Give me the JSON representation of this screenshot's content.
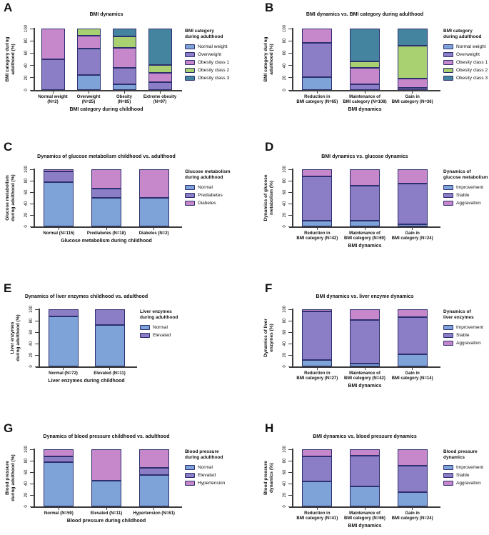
{
  "colors": {
    "background": "#ffffff",
    "bar_border": "#2d2f6e",
    "axis": "#3c3c3c",
    "text": "#141414",
    "blue": "#7da3d8",
    "purple": "#8b7ec6",
    "orchid": "#c687cb",
    "green": "#a9d171",
    "teal": "#45849e"
  },
  "chart_data": [
    {
      "panel": "A",
      "type": "bar",
      "stacked": true,
      "grid": false,
      "legend_position": "right",
      "title": "BMI dynamics",
      "xlabel": "BMI category during childhood",
      "ylabel": "BMI category during adulthood (%)",
      "ylabel_lines": [
        "BMI category during",
        "adulthood (%)"
      ],
      "ylim": [
        0,
        100
      ],
      "yticks": [
        0,
        20,
        40,
        60,
        80,
        100
      ],
      "legend_title_lines": [
        "BMI category",
        "during adulthood"
      ],
      "categories": [
        [
          "Normal weight",
          "(N=2)"
        ],
        [
          "Overweight",
          "(N=25)"
        ],
        [
          "Obesity",
          "(N=85)"
        ],
        [
          "Extreme obesity",
          "(N=97)"
        ]
      ],
      "series": [
        {
          "name": "Normal weight",
          "color": "#7da3d8",
          "values": [
            0,
            24,
            9,
            0
          ]
        },
        {
          "name": "Overweight",
          "color": "#8b7ec6",
          "values": [
            50,
            44,
            27,
            13
          ]
        },
        {
          "name": "Obesity class 1",
          "color": "#c687cb",
          "values": [
            50,
            20,
            33,
            15
          ]
        },
        {
          "name": "Obesity class 2",
          "color": "#a9d171",
          "values": [
            0,
            12,
            18,
            13
          ]
        },
        {
          "name": "Obesity class 3",
          "color": "#45849e",
          "values": [
            0,
            0,
            13,
            59
          ]
        }
      ]
    },
    {
      "panel": "B",
      "type": "bar",
      "stacked": true,
      "grid": false,
      "legend_position": "right",
      "title": "BMI dynamics vs. BMI category during adulthood",
      "xlabel": "BMI dynamics",
      "ylabel": "BMI category during adulthood (%)",
      "ylabel_lines": [
        "BMI category during",
        "adulthood (%)"
      ],
      "ylim": [
        0,
        100
      ],
      "yticks": [
        0,
        20,
        40,
        60,
        80,
        100
      ],
      "legend_title_lines": [
        "BMI category",
        "during adulthood"
      ],
      "categories": [
        [
          "Reduction in",
          "BMI category (N=65)"
        ],
        [
          "Maintenance of",
          "BMI category (N=108)"
        ],
        [
          "Gain in",
          "BMI category (N=36)"
        ]
      ],
      "series": [
        {
          "name": "Normal weight",
          "color": "#7da3d8",
          "values": [
            21,
            0,
            0
          ]
        },
        {
          "name": "Overweight",
          "color": "#8b7ec6",
          "values": [
            56,
            9,
            3
          ]
        },
        {
          "name": "Obesity class 1",
          "color": "#c687cb",
          "values": [
            23,
            27,
            16
          ]
        },
        {
          "name": "Obesity class 2",
          "color": "#a9d171",
          "values": [
            0,
            11,
            53
          ]
        },
        {
          "name": "Obesity class 3",
          "color": "#45849e",
          "values": [
            0,
            53,
            28
          ]
        }
      ]
    },
    {
      "panel": "C",
      "type": "bar",
      "stacked": true,
      "grid": false,
      "legend_position": "right",
      "title": "Dynamics of glucose metabolism childhood vs. adulthood",
      "xlabel": "Glucose metabolism during childhood",
      "ylabel": "Glucose metabolism during adulthood (%)",
      "ylabel_lines": [
        "Glucose metabolism",
        "during adulthood (%)"
      ],
      "ylim": [
        0,
        100
      ],
      "yticks": [
        0,
        20,
        40,
        60,
        80,
        100
      ],
      "legend_title_lines": [
        "Glucose metabolism",
        "during adulthood"
      ],
      "categories": [
        [
          "Normal (N=115)"
        ],
        [
          "Prediabetes (N=18)"
        ],
        [
          "Diabetes (N=2)"
        ]
      ],
      "series": [
        {
          "name": "Normal",
          "color": "#7da3d8",
          "values": [
            78,
            50,
            50
          ]
        },
        {
          "name": "Prediabetes",
          "color": "#8b7ec6",
          "values": [
            18,
            16,
            0
          ]
        },
        {
          "name": "Diabetes",
          "color": "#c687cb",
          "values": [
            4,
            34,
            50
          ]
        }
      ]
    },
    {
      "panel": "D",
      "type": "bar",
      "stacked": true,
      "grid": false,
      "legend_position": "right",
      "title": "BMI dynamics vs. glucose dynamics",
      "xlabel": "BMI dynamics",
      "ylabel": "Dynamics of glucose metabolism (%)",
      "ylabel_lines": [
        "Dynamics of glucose",
        "metabolism (%)"
      ],
      "ylim": [
        0,
        100
      ],
      "yticks": [
        0,
        20,
        40,
        60,
        80,
        100
      ],
      "legend_title_lines": [
        "Dynamics of",
        "glucose metabolism"
      ],
      "categories": [
        [
          "Reduction in",
          "BMI category (N=42)"
        ],
        [
          "Maintenance of",
          "BMI category (N=69)"
        ],
        [
          "Gain in",
          "BMI category (N=24)"
        ]
      ],
      "series": [
        {
          "name": "Improvement",
          "color": "#7da3d8",
          "values": [
            10,
            10,
            4
          ]
        },
        {
          "name": "Stable",
          "color": "#8b7ec6",
          "values": [
            78,
            61,
            71
          ]
        },
        {
          "name": "Aggravation",
          "color": "#c687cb",
          "values": [
            12,
            29,
            25
          ]
        }
      ]
    },
    {
      "panel": "E",
      "type": "bar",
      "stacked": true,
      "grid": false,
      "legend_position": "right",
      "title": "Dynamics of liver enzymes childhood vs. adulthood",
      "xlabel": "Liver enzymes during childhood",
      "ylabel": "Liver enzymes during adulthood (%)",
      "ylabel_lines": [
        "Liver enzymes",
        "during adulthood (%)"
      ],
      "ylim": [
        0,
        100
      ],
      "yticks": [
        0,
        20,
        40,
        60,
        80,
        100
      ],
      "legend_title_lines": [
        "Liver enzymes",
        "during adulthood"
      ],
      "categories": [
        [
          "Normal (N=72)"
        ],
        [
          "Elevated (N=11)"
        ]
      ],
      "series": [
        {
          "name": "Normal",
          "color": "#7da3d8",
          "values": [
            87,
            72
          ]
        },
        {
          "name": "Elevated",
          "color": "#8b7ec6",
          "values": [
            13,
            28
          ]
        }
      ]
    },
    {
      "panel": "F",
      "type": "bar",
      "stacked": true,
      "grid": false,
      "legend_position": "right",
      "title": "BMI dynamics vs. liver enzyme dynamics",
      "xlabel": "BMI dynamics",
      "ylabel": "Dynamics of liver enzymes (%)",
      "ylabel_lines": [
        "Dynamics of liver",
        "enzymes (%)"
      ],
      "ylim": [
        0,
        100
      ],
      "yticks": [
        0,
        20,
        40,
        60,
        80,
        100
      ],
      "legend_title_lines": [
        "Dynamics of",
        "liver enzymes"
      ],
      "categories": [
        [
          "Reduction in",
          "BMI category (N=27)"
        ],
        [
          "Maintenance of",
          "BMI category (N=42)"
        ],
        [
          "Gain in",
          "BMI category (N=14)"
        ]
      ],
      "series": [
        {
          "name": "Improvement",
          "color": "#7da3d8",
          "values": [
            11,
            5,
            21
          ]
        },
        {
          "name": "Stable",
          "color": "#8b7ec6",
          "values": [
            85,
            76,
            65
          ]
        },
        {
          "name": "Aggravation",
          "color": "#c687cb",
          "values": [
            4,
            19,
            14
          ]
        }
      ]
    },
    {
      "panel": "G",
      "type": "bar",
      "stacked": true,
      "grid": false,
      "legend_position": "right",
      "title": "Dynamics of blood pressure childhood vs. adulthood",
      "xlabel": "Blood pressure during childhood",
      "ylabel": "Blood pressure during adulthood (%)",
      "ylabel_lines": [
        "Blood pressure",
        "during adulthood (%)"
      ],
      "ylim": [
        0,
        100
      ],
      "yticks": [
        0,
        20,
        40,
        60,
        80,
        100
      ],
      "legend_title_lines": [
        "Blood pressure",
        "during adulthood"
      ],
      "categories": [
        [
          "Normal (N=59)"
        ],
        [
          "Elevated (N=11)"
        ],
        [
          "Hypertension (N=61)"
        ]
      ],
      "series": [
        {
          "name": "Normal",
          "color": "#7da3d8",
          "values": [
            78,
            45,
            55
          ]
        },
        {
          "name": "Elevated",
          "color": "#8b7ec6",
          "values": [
            9,
            0,
            13
          ]
        },
        {
          "name": "Hypertension",
          "color": "#c687cb",
          "values": [
            13,
            55,
            32
          ]
        }
      ]
    },
    {
      "panel": "H",
      "type": "bar",
      "stacked": true,
      "grid": false,
      "legend_position": "right",
      "title": "BMI dynamics vs. blood pressure dynamics",
      "xlabel": "BMI dynamics",
      "ylabel": "Blood pressure dynamics (%)",
      "ylabel_lines": [
        "Blood pressure",
        "dynamics (%)"
      ],
      "ylim": [
        0,
        100
      ],
      "yticks": [
        0,
        20,
        40,
        60,
        80,
        100
      ],
      "legend_title_lines": [
        "Blood pressure",
        "dynamics"
      ],
      "categories": [
        [
          "Reduction in",
          "BMI category (N=41)"
        ],
        [
          "Maintenance of",
          "BMI category (N=66)"
        ],
        [
          "Gain in",
          "BMI category (N=24)"
        ]
      ],
      "series": [
        {
          "name": "Improvement",
          "color": "#7da3d8",
          "values": [
            44,
            35,
            25
          ]
        },
        {
          "name": "Stable",
          "color": "#8b7ec6",
          "values": [
            44,
            54,
            46
          ]
        },
        {
          "name": "Aggravation",
          "color": "#c687cb",
          "values": [
            12,
            11,
            29
          ]
        }
      ]
    }
  ]
}
